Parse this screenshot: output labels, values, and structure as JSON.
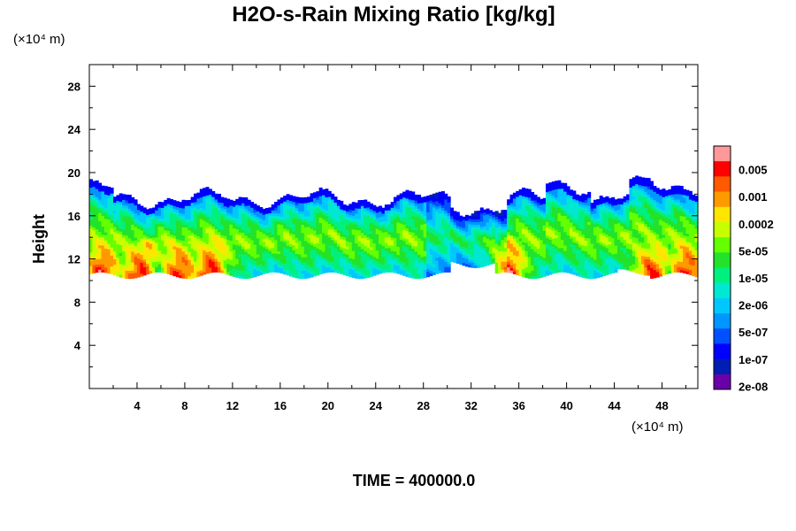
{
  "chart_data": {
    "type": "heatmap",
    "title": "H2O-s-Rain Mixing Ratio [kg/kg]",
    "xlabel": "",
    "ylabel": "Height",
    "x_unit_label": "(×10⁴ m)",
    "y_unit_label": "(×10⁴ m)",
    "xlim": [
      0,
      51
    ],
    "ylim": [
      0,
      30
    ],
    "x_ticks": [
      "4",
      "8",
      "12",
      "16",
      "20",
      "24",
      "28",
      "32",
      "36",
      "40",
      "44",
      "48"
    ],
    "y_ticks": [
      "4",
      "8",
      "12",
      "16",
      "20",
      "24",
      "28"
    ],
    "grid": false,
    "footer": "TIME = 400000.0",
    "colorbar": {
      "labels": [
        "0.005",
        "0.001",
        "0.0002",
        "5e-05",
        "1e-05",
        "2e-06",
        "5e-07",
        "1e-07",
        "2e-08"
      ],
      "colors": [
        "#ff9999",
        "#ff0000",
        "#ff5a00",
        "#ff9900",
        "#ffe600",
        "#c8ff00",
        "#64ff00",
        "#22e32a",
        "#00f080",
        "#00e8d2",
        "#00c8ff",
        "#0096ff",
        "#0050ff",
        "#0000ff",
        "#001eb4",
        "#6a00a8"
      ]
    },
    "band_summary": {
      "cloud_base": 10.5,
      "cloud_top_typical": 17.5,
      "cloud_top_max": 19.5,
      "rain_maxima_x": [
        1,
        4,
        7.5,
        10,
        35,
        47,
        50
      ]
    }
  }
}
